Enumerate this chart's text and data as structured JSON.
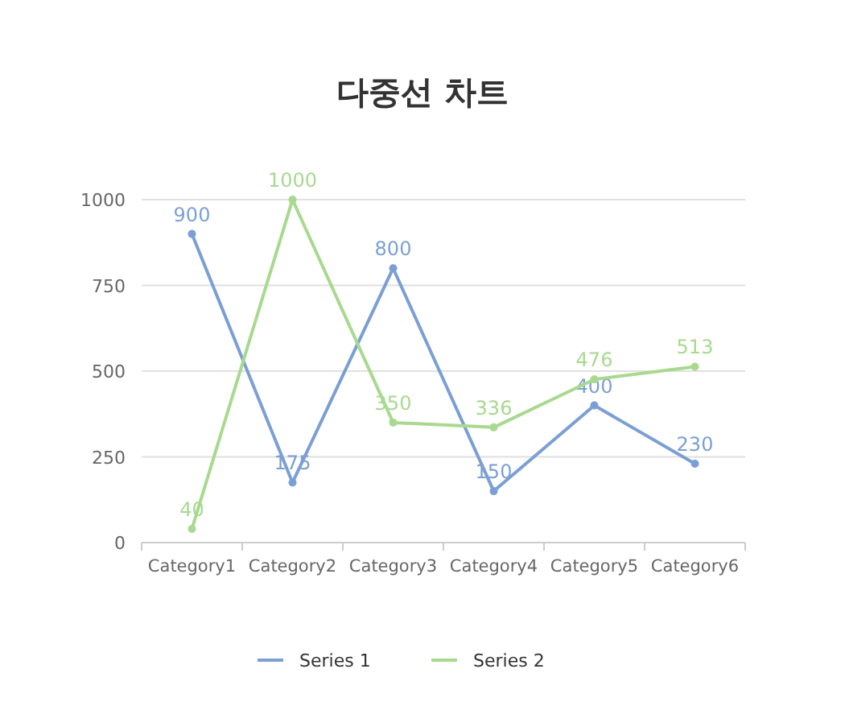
{
  "chart_data": {
    "type": "line",
    "title": "다중선 차트",
    "categories": [
      "Category1",
      "Category2",
      "Category3",
      "Category4",
      "Category5",
      "Category6"
    ],
    "series": [
      {
        "name": "Series 1",
        "color": "#7b9fd4",
        "values": [
          900,
          175,
          800,
          150,
          400,
          230
        ]
      },
      {
        "name": "Series 2",
        "color": "#a8d98f",
        "values": [
          40,
          1000,
          350,
          336,
          476,
          513
        ]
      }
    ],
    "ylim": [
      0,
      1000
    ],
    "yticks": [
      0,
      250,
      500,
      750,
      1000
    ],
    "grid": "y",
    "legend": "bottom",
    "data_labels": true,
    "marker": "circle",
    "line_style": "solid"
  }
}
